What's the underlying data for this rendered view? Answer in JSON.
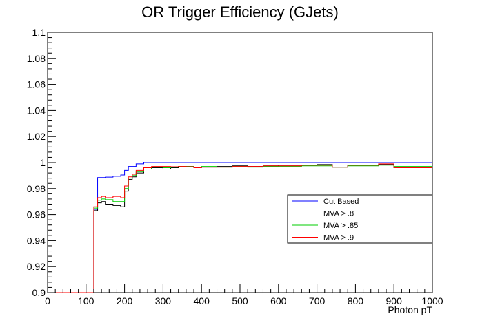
{
  "chart_data": {
    "type": "line",
    "title": "OR Trigger Efficiency (GJets)",
    "xlabel": "Photon pT",
    "ylabel": "",
    "xlim": [
      0,
      1000
    ],
    "ylim": [
      0.9,
      1.1
    ],
    "x_ticks": [
      0,
      100,
      200,
      300,
      400,
      500,
      600,
      700,
      800,
      900,
      1000
    ],
    "x_tick_labels": [
      "0",
      "100",
      "200",
      "300",
      "400",
      "500",
      "600",
      "700",
      "800",
      "900",
      "1000"
    ],
    "y_ticks": [
      0.9,
      0.92,
      0.94,
      0.96,
      0.98,
      1.0,
      1.02,
      1.04,
      1.06,
      1.08,
      1.1
    ],
    "y_tick_labels": [
      "0.9",
      "0.92",
      "0.94",
      "0.96",
      "0.98",
      "1",
      "1.02",
      "1.04",
      "1.06",
      "1.08",
      "1.1"
    ],
    "grid": false,
    "legend_position": "right",
    "series": [
      {
        "name": "Cut Based",
        "color": "#0000ff",
        "steps": [
          [
            0,
            0.9
          ],
          [
            120,
            0.964
          ],
          [
            130,
            0.9885
          ],
          [
            150,
            0.9888
          ],
          [
            170,
            0.9895
          ],
          [
            190,
            0.9905
          ],
          [
            200,
            0.994
          ],
          [
            210,
            0.997
          ],
          [
            230,
            0.999
          ],
          [
            250,
            1.0
          ],
          [
            300,
            1.0
          ],
          [
            400,
            1.0
          ],
          [
            500,
            1.0
          ],
          [
            600,
            1.0
          ],
          [
            700,
            1.0
          ],
          [
            800,
            1.0
          ],
          [
            900,
            1.0
          ],
          [
            1000,
            1.0
          ]
        ]
      },
      {
        "name": "MVA > .8",
        "color": "#000000",
        "steps": [
          [
            0,
            0.9
          ],
          [
            120,
            0.963
          ],
          [
            130,
            0.969
          ],
          [
            140,
            0.97
          ],
          [
            150,
            0.968
          ],
          [
            170,
            0.967
          ],
          [
            190,
            0.966
          ],
          [
            200,
            0.978
          ],
          [
            210,
            0.987
          ],
          [
            220,
            0.989
          ],
          [
            230,
            0.992
          ],
          [
            250,
            0.995
          ],
          [
            270,
            0.996
          ],
          [
            300,
            0.995
          ],
          [
            320,
            0.996
          ],
          [
            340,
            0.997
          ],
          [
            360,
            0.997
          ],
          [
            380,
            0.996
          ],
          [
            400,
            0.9965
          ],
          [
            440,
            0.997
          ],
          [
            480,
            0.9975
          ],
          [
            520,
            0.997
          ],
          [
            560,
            0.9975
          ],
          [
            600,
            0.998
          ],
          [
            660,
            0.998
          ],
          [
            700,
            0.9985
          ],
          [
            740,
            0.9965
          ],
          [
            780,
            0.998
          ],
          [
            820,
            0.998
          ],
          [
            860,
            0.9985
          ],
          [
            900,
            0.996
          ],
          [
            960,
            0.996
          ],
          [
            1000,
            0.996
          ]
        ]
      },
      {
        "name": "MVA > .85",
        "color": "#00cc00",
        "steps": [
          [
            0,
            0.9
          ],
          [
            120,
            0.965
          ],
          [
            130,
            0.971
          ],
          [
            140,
            0.972
          ],
          [
            150,
            0.9715
          ],
          [
            170,
            0.97
          ],
          [
            190,
            0.97
          ],
          [
            200,
            0.98
          ],
          [
            210,
            0.988
          ],
          [
            220,
            0.99
          ],
          [
            230,
            0.993
          ],
          [
            250,
            0.995
          ],
          [
            270,
            0.9965
          ],
          [
            300,
            0.996
          ],
          [
            320,
            0.9965
          ],
          [
            340,
            0.997
          ],
          [
            360,
            0.997
          ],
          [
            380,
            0.9965
          ],
          [
            400,
            0.997
          ],
          [
            440,
            0.9965
          ],
          [
            480,
            0.997
          ],
          [
            520,
            0.9965
          ],
          [
            560,
            0.997
          ],
          [
            600,
            0.997
          ],
          [
            660,
            0.9975
          ],
          [
            700,
            0.9975
          ],
          [
            740,
            0.9965
          ],
          [
            780,
            0.9975
          ],
          [
            820,
            0.9975
          ],
          [
            860,
            0.998
          ],
          [
            900,
            0.997
          ],
          [
            960,
            0.997
          ],
          [
            1000,
            0.997
          ]
        ]
      },
      {
        "name": "MVA > .9",
        "color": "#ff0000",
        "steps": [
          [
            0,
            0.9
          ],
          [
            120,
            0.966
          ],
          [
            130,
            0.973
          ],
          [
            140,
            0.974
          ],
          [
            150,
            0.973
          ],
          [
            170,
            0.974
          ],
          [
            190,
            0.973
          ],
          [
            200,
            0.982
          ],
          [
            210,
            0.989
          ],
          [
            220,
            0.991
          ],
          [
            230,
            0.994
          ],
          [
            250,
            0.996
          ],
          [
            270,
            0.997
          ],
          [
            300,
            0.997
          ],
          [
            320,
            0.9968
          ],
          [
            340,
            0.997
          ],
          [
            360,
            0.9968
          ],
          [
            380,
            0.996
          ],
          [
            400,
            0.9965
          ],
          [
            440,
            0.9965
          ],
          [
            480,
            0.997
          ],
          [
            520,
            0.997
          ],
          [
            560,
            0.9975
          ],
          [
            600,
            0.9975
          ],
          [
            660,
            0.998
          ],
          [
            700,
            0.998
          ],
          [
            740,
            0.9965
          ],
          [
            780,
            0.998
          ],
          [
            820,
            0.998
          ],
          [
            860,
            0.999
          ],
          [
            900,
            0.996
          ],
          [
            960,
            0.996
          ],
          [
            1000,
            0.996
          ]
        ]
      }
    ]
  }
}
